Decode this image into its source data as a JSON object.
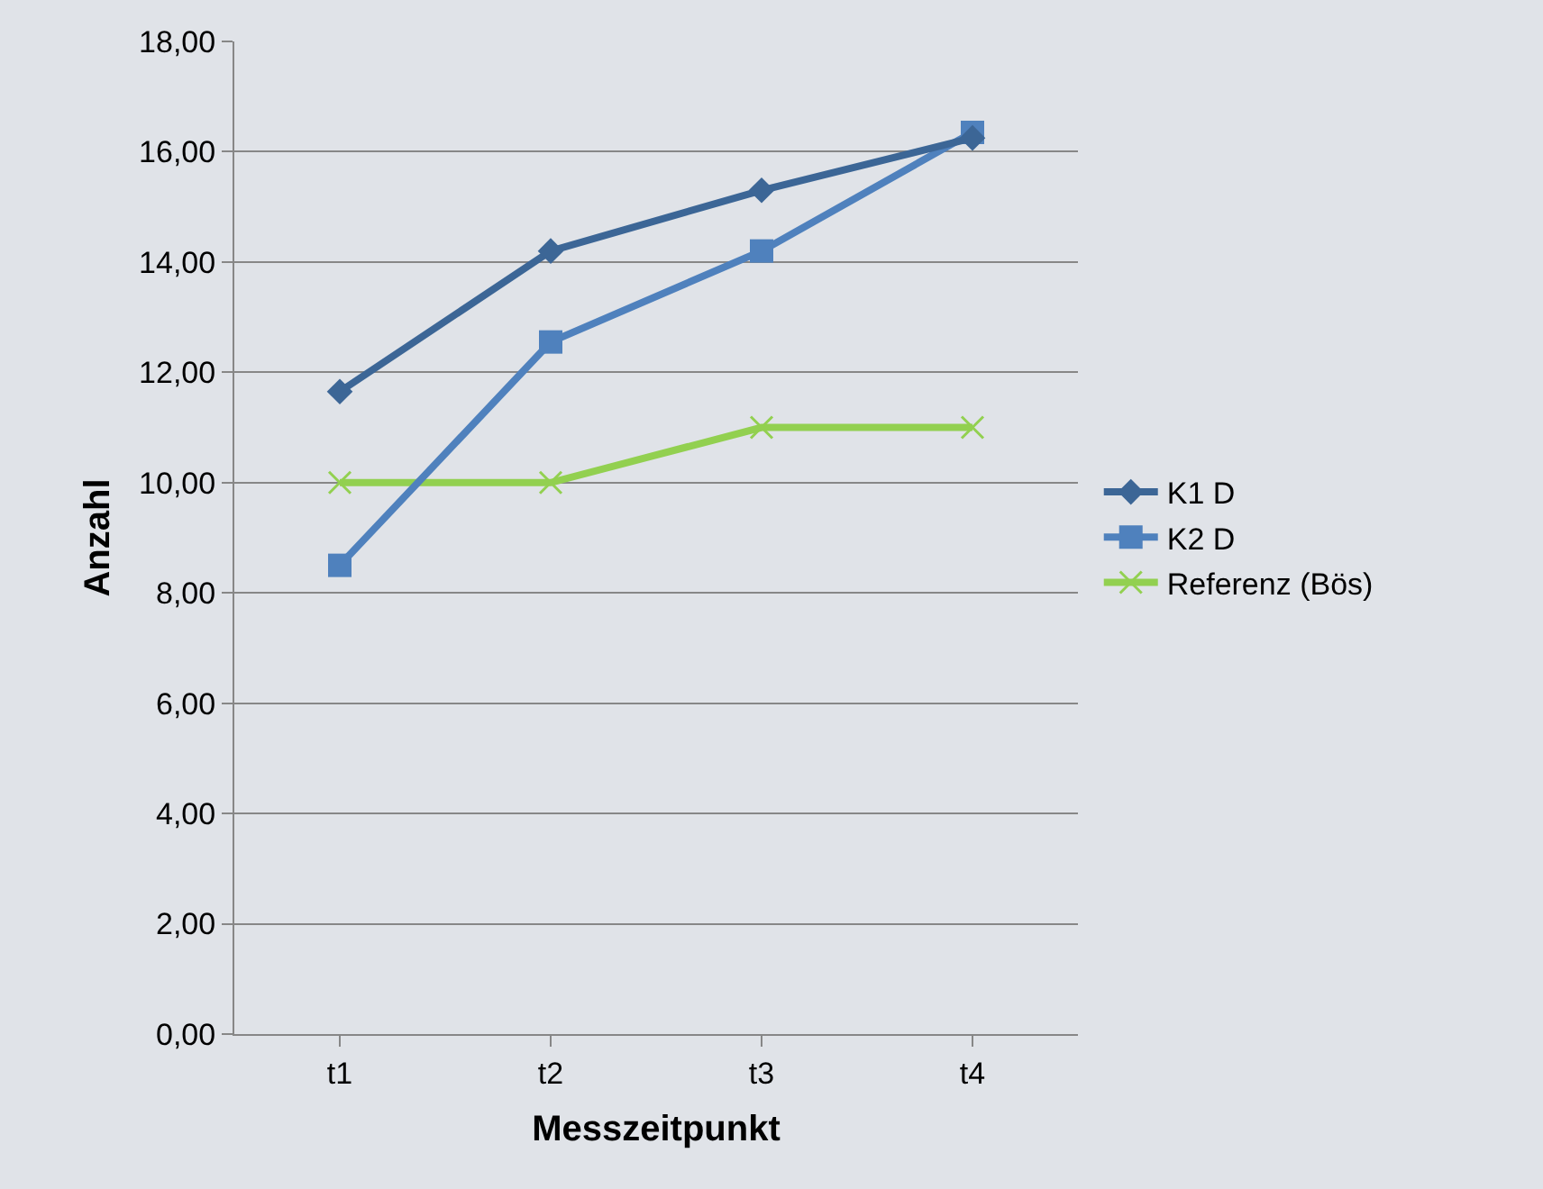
{
  "chart_data": {
    "type": "line",
    "xlabel": "Messzeitpunkt",
    "ylabel": "Anzahl",
    "categories": [
      "t1",
      "t2",
      "t3",
      "t4"
    ],
    "series": [
      {
        "name": "K1 D",
        "color": "#3c6696",
        "marker": "diamond",
        "values": [
          11.65,
          14.2,
          15.3,
          16.25
        ]
      },
      {
        "name": "K2 D",
        "color": "#4f81bd",
        "marker": "square",
        "values": [
          8.5,
          12.55,
          14.2,
          16.35
        ]
      },
      {
        "name": "Referenz (Bös)",
        "color": "#92d050",
        "marker": "cross",
        "values": [
          10,
          10,
          11,
          11
        ]
      }
    ],
    "ylim": [
      0,
      18
    ],
    "yticks": [
      {
        "value": 0,
        "label": "0,00"
      },
      {
        "value": 2,
        "label": "2,00"
      },
      {
        "value": 4,
        "label": "4,00"
      },
      {
        "value": 6,
        "label": "6,00"
      },
      {
        "value": 8,
        "label": "8,00"
      },
      {
        "value": 10,
        "label": "10,00"
      },
      {
        "value": 12,
        "label": "12,00"
      },
      {
        "value": 14,
        "label": "14,00"
      },
      {
        "value": 16,
        "label": "16,00"
      },
      {
        "value": 18,
        "label": "18,00"
      }
    ],
    "grid": "y",
    "legend": "right",
    "line_style": "solid"
  }
}
